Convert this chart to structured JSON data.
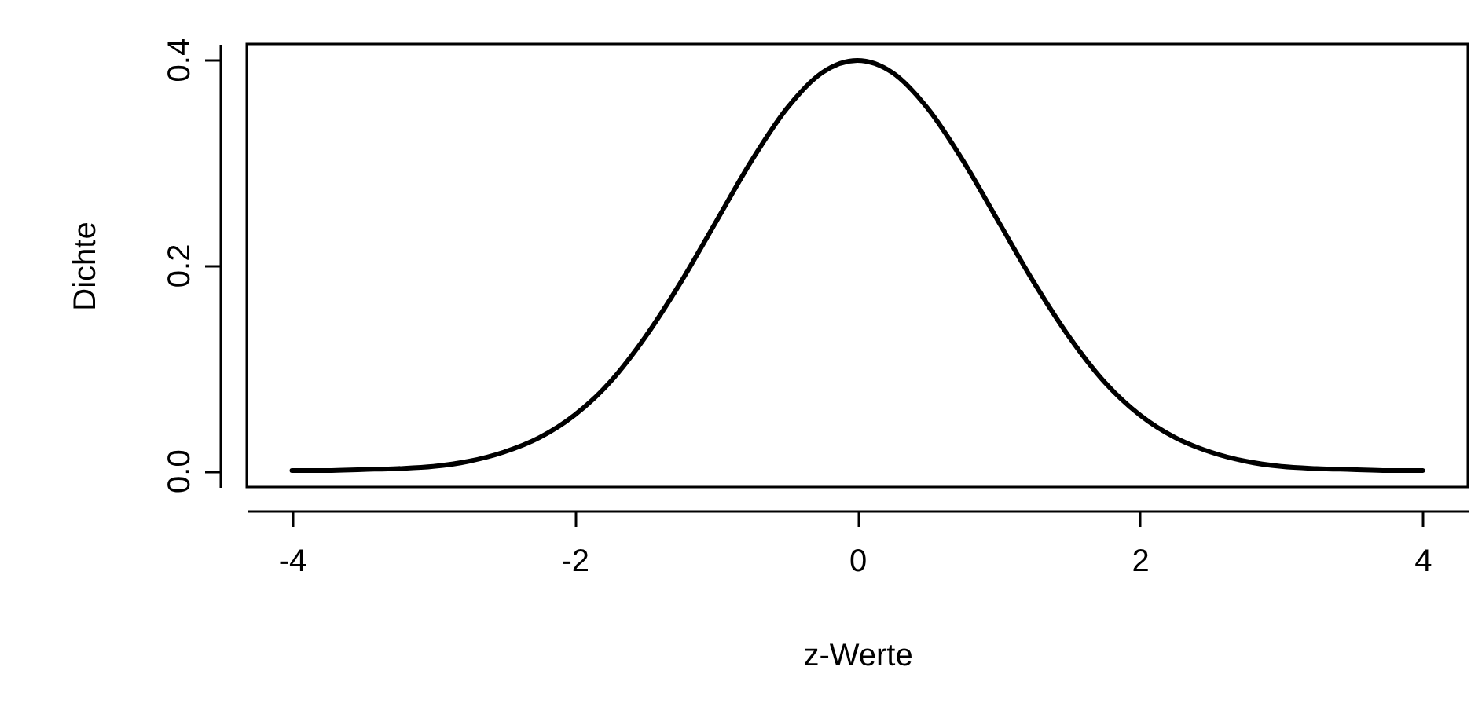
{
  "chart_data": {
    "type": "line",
    "xlabel": "z-Werte",
    "ylabel": "Dichte",
    "x": [
      -4,
      -3.75,
      -3.5,
      -3.25,
      -3,
      -2.75,
      -2.5,
      -2.25,
      -2,
      -1.75,
      -1.5,
      -1.25,
      -1,
      -0.75,
      -0.5,
      -0.25,
      0,
      0.25,
      0.5,
      0.75,
      1,
      1.25,
      1.5,
      1.75,
      2,
      2.25,
      2.5,
      2.75,
      3,
      3.25,
      3.5,
      3.75,
      4
    ],
    "series": [
      {
        "color": "#000000",
        "values": [
          0.0,
          0.0,
          0.001,
          0.002,
          0.004,
          0.009,
          0.018,
          0.032,
          0.054,
          0.086,
          0.13,
          0.183,
          0.242,
          0.301,
          0.352,
          0.387,
          0.399,
          0.387,
          0.352,
          0.301,
          0.242,
          0.183,
          0.13,
          0.086,
          0.054,
          0.032,
          0.018,
          0.009,
          0.004,
          0.002,
          0.001,
          0.0,
          0.0
        ]
      }
    ],
    "xlim": [
      -4.32,
      4.32
    ],
    "xticks": [
      -4,
      -2,
      0,
      2,
      4
    ],
    "ylim": [
      -0.016,
      0.415
    ],
    "yticks": [
      {
        "value": 0,
        "label": "0.0"
      },
      {
        "value": 0.2,
        "label": "0.2"
      },
      {
        "value": 0.4,
        "label": "0.4"
      }
    ],
    "grid": false,
    "legend": false,
    "marker": "none",
    "line_style": "solid"
  }
}
